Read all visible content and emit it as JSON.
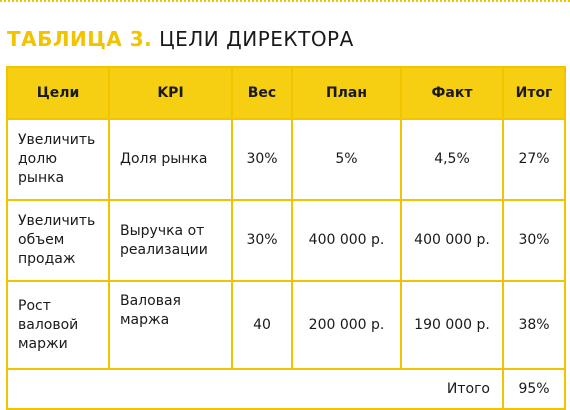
{
  "title": {
    "prefix": "ТАБЛИЦА 3.",
    "text": "ЦЕЛИ ДИРЕКТОРА"
  },
  "table": {
    "headers": [
      "Цели",
      "KPI",
      "Вес",
      "План",
      "Факт",
      "Итог"
    ],
    "rows": [
      [
        "Увеличить долю рынка",
        "Доля рынка",
        "30%",
        "5%",
        "4,5%",
        "27%"
      ],
      [
        "Увеличить объем продаж",
        "Выручка от реализации",
        "30%",
        "400 000 р.",
        "400 000 р.",
        "30%"
      ],
      [
        "Рост валовой маржи",
        "Валовая маржа",
        "40",
        "200 000 р.",
        "190 000 р.",
        "38%"
      ]
    ],
    "total_label": "Итого",
    "total_value": "95%"
  },
  "colors": {
    "accent": "#f2c400",
    "header_fill": "#f7cf12",
    "text": "#1a1a1a"
  }
}
